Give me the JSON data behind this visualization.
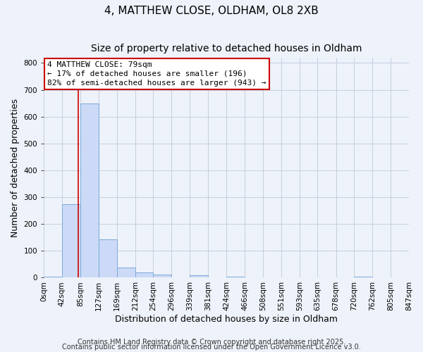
{
  "title1": "4, MATTHEW CLOSE, OLDHAM, OL8 2XB",
  "title2": "Size of property relative to detached houses in Oldham",
  "xlabel": "Distribution of detached houses by size in Oldham",
  "ylabel": "Number of detached properties",
  "bin_edges": [
    0,
    42,
    85,
    127,
    169,
    212,
    254,
    296,
    339,
    381,
    424,
    466,
    508,
    551,
    593,
    635,
    678,
    720,
    762,
    805,
    847
  ],
  "bar_heights": [
    5,
    275,
    648,
    142,
    38,
    20,
    12,
    0,
    10,
    0,
    5,
    0,
    0,
    0,
    0,
    0,
    0,
    3,
    0,
    0
  ],
  "bar_color": "#ccdaf7",
  "bar_edge_color": "#7aaad8",
  "property_line_x": 79,
  "property_line_color": "#cc0000",
  "annotation_title": "4 MATTHEW CLOSE: 79sqm",
  "annotation_line1": "← 17% of detached houses are smaller (196)",
  "annotation_line2": "82% of semi-detached houses are larger (943) →",
  "annotation_box_edgecolor": "#cc0000",
  "ylim": [
    0,
    820
  ],
  "yticks": [
    0,
    100,
    200,
    300,
    400,
    500,
    600,
    700,
    800
  ],
  "tick_labels": [
    "0sqm",
    "42sqm",
    "85sqm",
    "127sqm",
    "169sqm",
    "212sqm",
    "254sqm",
    "296sqm",
    "339sqm",
    "381sqm",
    "424sqm",
    "466sqm",
    "508sqm",
    "551sqm",
    "593sqm",
    "635sqm",
    "678sqm",
    "720sqm",
    "762sqm",
    "805sqm",
    "847sqm"
  ],
  "footnote1": "Contains HM Land Registry data © Crown copyright and database right 2025.",
  "footnote2": "Contains public sector information licensed under the Open Government Licence v3.0.",
  "background_color": "#eef2fa",
  "plot_bg_color": "#eef2fa",
  "grid_color": "#c5cfdf",
  "title1_fontsize": 11,
  "title2_fontsize": 10,
  "axis_label_fontsize": 9,
  "tick_fontsize": 7.5,
  "annotation_fontsize": 8,
  "footnote_fontsize": 7
}
